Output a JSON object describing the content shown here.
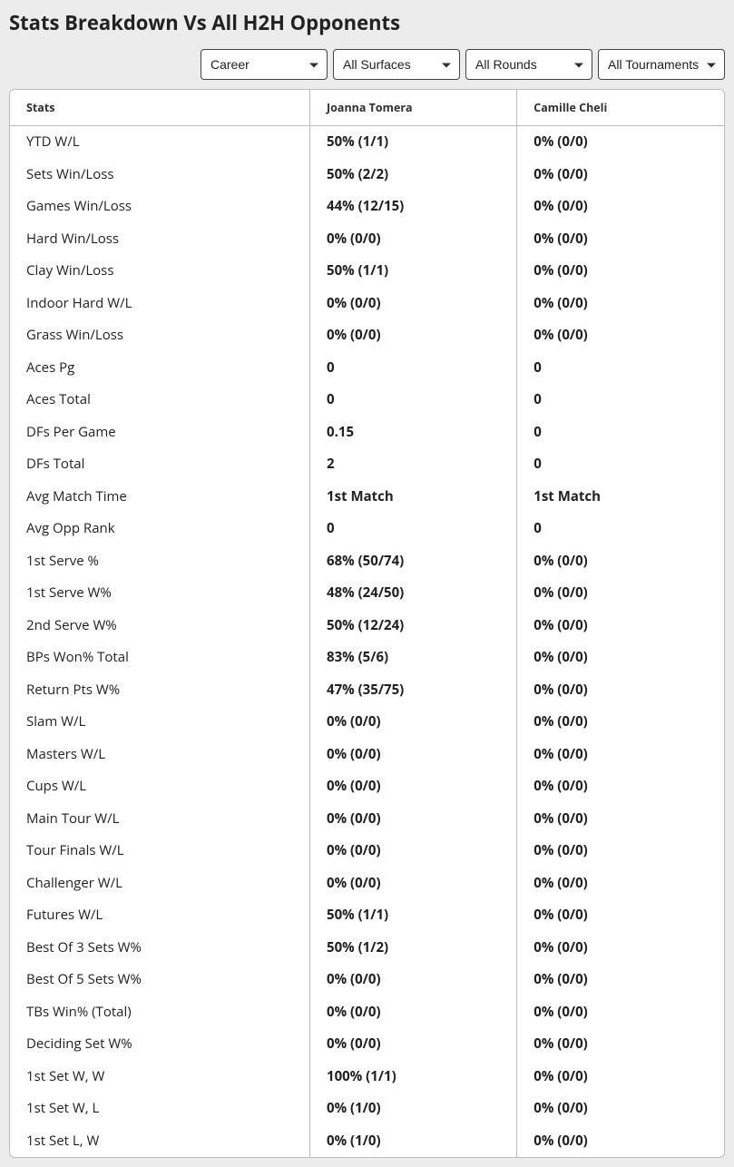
{
  "title": "Stats Breakdown Vs All H2H Opponents",
  "filters": {
    "period": "Career",
    "surface": "All Surfaces",
    "round": "All Rounds",
    "tournament": "All Tournaments"
  },
  "table": {
    "columns": [
      "Stats",
      "Joanna Tomera",
      "Camille Cheli"
    ],
    "rows": [
      [
        "YTD W/L",
        "50% (1/1)",
        "0% (0/0)"
      ],
      [
        "Sets Win/Loss",
        "50% (2/2)",
        "0% (0/0)"
      ],
      [
        "Games Win/Loss",
        "44% (12/15)",
        "0% (0/0)"
      ],
      [
        "Hard Win/Loss",
        "0% (0/0)",
        "0% (0/0)"
      ],
      [
        "Clay Win/Loss",
        "50% (1/1)",
        "0% (0/0)"
      ],
      [
        "Indoor Hard W/L",
        "0% (0/0)",
        "0% (0/0)"
      ],
      [
        "Grass Win/Loss",
        "0% (0/0)",
        "0% (0/0)"
      ],
      [
        "Aces Pg",
        "0",
        "0"
      ],
      [
        "Aces Total",
        "0",
        "0"
      ],
      [
        "DFs Per Game",
        "0.15",
        "0"
      ],
      [
        "DFs Total",
        "2",
        "0"
      ],
      [
        "Avg Match Time",
        "1st Match",
        "1st Match"
      ],
      [
        "Avg Opp Rank",
        "0",
        "0"
      ],
      [
        "1st Serve %",
        "68% (50/74)",
        "0% (0/0)"
      ],
      [
        "1st Serve W%",
        "48% (24/50)",
        "0% (0/0)"
      ],
      [
        "2nd Serve W%",
        "50% (12/24)",
        "0% (0/0)"
      ],
      [
        "BPs Won% Total",
        "83% (5/6)",
        "0% (0/0)"
      ],
      [
        "Return Pts W%",
        "47% (35/75)",
        "0% (0/0)"
      ],
      [
        "Slam W/L",
        "0% (0/0)",
        "0% (0/0)"
      ],
      [
        "Masters W/L",
        "0% (0/0)",
        "0% (0/0)"
      ],
      [
        "Cups W/L",
        "0% (0/0)",
        "0% (0/0)"
      ],
      [
        "Main Tour W/L",
        "0% (0/0)",
        "0% (0/0)"
      ],
      [
        "Tour Finals W/L",
        "0% (0/0)",
        "0% (0/0)"
      ],
      [
        "Challenger W/L",
        "0% (0/0)",
        "0% (0/0)"
      ],
      [
        "Futures W/L",
        "50% (1/1)",
        "0% (0/0)"
      ],
      [
        "Best Of 3 Sets W%",
        "50% (1/2)",
        "0% (0/0)"
      ],
      [
        "Best Of 5 Sets W%",
        "0% (0/0)",
        "0% (0/0)"
      ],
      [
        "TBs Win% (Total)",
        "0% (0/0)",
        "0% (0/0)"
      ],
      [
        "Deciding Set W%",
        "0% (0/0)",
        "0% (0/0)"
      ],
      [
        "1st Set W, W",
        "100% (1/1)",
        "0% (0/0)"
      ],
      [
        "1st Set W, L",
        "0% (1/0)",
        "0% (0/0)"
      ],
      [
        "1st Set L, W",
        "0% (1/0)",
        "0% (0/0)"
      ]
    ]
  },
  "styling": {
    "background_color": "#ececec",
    "card_bg": "#ffffff",
    "border_color": "#bdbdbd",
    "title_fontsize": 22,
    "header_fontsize": 12.5,
    "cell_fontsize": 15,
    "col_widths_pct": [
      42,
      29,
      29
    ]
  }
}
